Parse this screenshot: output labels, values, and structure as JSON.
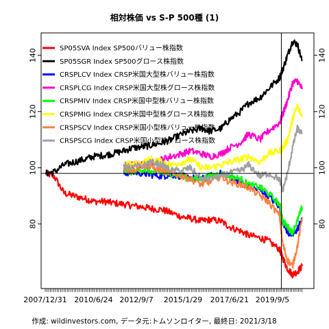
{
  "chart_data": {
    "type": "line",
    "title": "相対株価 vs S-P 500種 (1)",
    "caption": "作成: wildinvestors.com, データ元:トムソンロイター, 最終日: 2021/3/18",
    "xlabel": "",
    "ylabel": "",
    "x_range": [
      "2007/12/31",
      "2021/03/18"
    ],
    "x_tick_labels": [
      "2007/12/31",
      "2010/6/24",
      "2012/9/7",
      "2015/1/29",
      "2017/6/21",
      "2019/9/5"
    ],
    "x_tick_dates": [
      "2007-12-31",
      "2010-06-24",
      "2012-09-07",
      "2015-01-29",
      "2017-06-21",
      "2019-09-05"
    ],
    "y_ticks": [
      80,
      100,
      120,
      140
    ],
    "ylim": [
      57,
      148
    ],
    "grid": false,
    "legend_position": "top-left",
    "reference_hline": 98,
    "reference_vline_date": "2020-02-19",
    "series": [
      {
        "name": "SP05SVA Index SP500バリュー株指数",
        "color": "#FF0000",
        "points": [
          [
            "2008-01",
            98
          ],
          [
            "2008-06",
            97
          ],
          [
            "2008-12",
            91
          ],
          [
            "2009-06",
            90
          ],
          [
            "2010-01",
            89
          ],
          [
            "2010-06",
            88
          ],
          [
            "2011-01",
            88
          ],
          [
            "2011-06",
            87.5
          ],
          [
            "2012-01",
            87
          ],
          [
            "2012-06",
            86.5
          ],
          [
            "2013-01",
            86
          ],
          [
            "2013-06",
            85.5
          ],
          [
            "2014-01",
            85
          ],
          [
            "2014-06",
            84
          ],
          [
            "2015-01",
            82.5
          ],
          [
            "2015-06",
            82
          ],
          [
            "2016-01",
            81
          ],
          [
            "2016-06",
            81.5
          ],
          [
            "2017-01",
            81
          ],
          [
            "2017-06",
            79
          ],
          [
            "2018-01",
            77.5
          ],
          [
            "2018-06",
            76
          ],
          [
            "2019-01",
            75
          ],
          [
            "2019-06",
            74
          ],
          [
            "2020-01",
            71
          ],
          [
            "2020-03",
            68
          ],
          [
            "2020-06",
            64
          ],
          [
            "2020-09",
            62
          ],
          [
            "2020-12",
            63
          ],
          [
            "2021-03",
            65
          ]
        ]
      },
      {
        "name": "SP05SGR Index SP500グロース株指数",
        "color": "#000000",
        "points": [
          [
            "2008-01",
            98
          ],
          [
            "2008-06",
            98.5
          ],
          [
            "2008-12",
            101
          ],
          [
            "2009-06",
            102
          ],
          [
            "2010-01",
            103
          ],
          [
            "2010-06",
            104
          ],
          [
            "2011-01",
            104.5
          ],
          [
            "2011-06",
            105
          ],
          [
            "2012-01",
            106
          ],
          [
            "2012-06",
            107
          ],
          [
            "2013-01",
            107.5
          ],
          [
            "2013-06",
            108
          ],
          [
            "2014-01",
            109
          ],
          [
            "2014-06",
            110
          ],
          [
            "2015-01",
            112
          ],
          [
            "2015-06",
            113
          ],
          [
            "2016-01",
            114
          ],
          [
            "2016-06",
            113
          ],
          [
            "2017-01",
            114
          ],
          [
            "2017-06",
            117
          ],
          [
            "2018-01",
            120
          ],
          [
            "2018-06",
            123
          ],
          [
            "2019-01",
            125
          ],
          [
            "2019-06",
            128
          ],
          [
            "2020-01",
            132
          ],
          [
            "2020-03",
            135
          ],
          [
            "2020-06",
            140
          ],
          [
            "2020-09",
            145
          ],
          [
            "2020-12",
            144
          ],
          [
            "2021-03",
            138
          ]
        ]
      },
      {
        "name": "CRSPLCV Index CRSP米国大型株バリュー株指数",
        "color": "#0000FF",
        "points": [
          [
            "2012-01",
            98
          ],
          [
            "2012-06",
            98.5
          ],
          [
            "2013-01",
            98
          ],
          [
            "2013-06",
            97.5
          ],
          [
            "2014-01",
            97
          ],
          [
            "2014-06",
            97.5
          ],
          [
            "2015-01",
            97
          ],
          [
            "2015-06",
            96.5
          ],
          [
            "2016-01",
            96
          ],
          [
            "2016-06",
            97
          ],
          [
            "2017-01",
            98
          ],
          [
            "2017-06",
            97
          ],
          [
            "2018-01",
            95
          ],
          [
            "2018-06",
            93
          ],
          [
            "2019-01",
            92
          ],
          [
            "2019-06",
            90
          ],
          [
            "2020-01",
            86
          ],
          [
            "2020-03",
            81
          ],
          [
            "2020-06",
            77
          ],
          [
            "2020-09",
            76
          ],
          [
            "2020-12",
            78
          ],
          [
            "2021-03",
            82
          ]
        ]
      },
      {
        "name": "CRSPLCG Index CRSP米国大型株グロース株指数",
        "color": "#FF00CC",
        "points": [
          [
            "2012-01",
            100
          ],
          [
            "2012-06",
            101
          ],
          [
            "2013-01",
            101
          ],
          [
            "2013-06",
            102
          ],
          [
            "2014-01",
            103
          ],
          [
            "2014-06",
            104
          ],
          [
            "2015-01",
            105
          ],
          [
            "2015-06",
            106
          ],
          [
            "2016-01",
            105
          ],
          [
            "2016-06",
            104
          ],
          [
            "2017-01",
            105
          ],
          [
            "2017-06",
            107
          ],
          [
            "2018-01",
            109
          ],
          [
            "2018-06",
            112
          ],
          [
            "2019-01",
            110
          ],
          [
            "2019-06",
            113
          ],
          [
            "2020-01",
            116
          ],
          [
            "2020-03",
            119
          ],
          [
            "2020-06",
            124
          ],
          [
            "2020-09",
            130
          ],
          [
            "2020-12",
            131
          ],
          [
            "2021-03",
            128
          ]
        ]
      },
      {
        "name": "CRSPMIV Index CRSP米国中型株バリュー株指数",
        "color": "#00FF00",
        "points": [
          [
            "2012-01",
            99
          ],
          [
            "2012-06",
            98.5
          ],
          [
            "2013-01",
            99.5
          ],
          [
            "2013-06",
            98.5
          ],
          [
            "2014-01",
            98
          ],
          [
            "2014-06",
            98
          ],
          [
            "2015-01",
            97
          ],
          [
            "2015-06",
            96
          ],
          [
            "2016-01",
            96
          ],
          [
            "2016-06",
            97
          ],
          [
            "2017-01",
            98
          ],
          [
            "2017-06",
            97
          ],
          [
            "2018-01",
            96
          ],
          [
            "2018-06",
            94
          ],
          [
            "2019-01",
            93
          ],
          [
            "2019-06",
            91
          ],
          [
            "2020-01",
            87
          ],
          [
            "2020-03",
            81
          ],
          [
            "2020-06",
            79
          ],
          [
            "2020-09",
            77
          ],
          [
            "2020-12",
            81
          ],
          [
            "2021-03",
            86
          ]
        ]
      },
      {
        "name": "CRSPMIG Index CRSP米国中型株グロース株指数",
        "color": "#FFFF00",
        "points": [
          [
            "2012-01",
            102
          ],
          [
            "2012-06",
            101
          ],
          [
            "2013-01",
            102
          ],
          [
            "2013-06",
            103
          ],
          [
            "2014-01",
            102
          ],
          [
            "2014-06",
            101
          ],
          [
            "2015-01",
            102
          ],
          [
            "2015-06",
            103
          ],
          [
            "2016-01",
            100
          ],
          [
            "2016-06",
            100
          ],
          [
            "2017-01",
            101
          ],
          [
            "2017-06",
            102
          ],
          [
            "2018-01",
            103
          ],
          [
            "2018-06",
            104
          ],
          [
            "2019-01",
            102
          ],
          [
            "2019-06",
            105
          ],
          [
            "2020-01",
            106
          ],
          [
            "2020-03",
            107
          ],
          [
            "2020-06",
            110
          ],
          [
            "2020-09",
            117
          ],
          [
            "2020-12",
            122
          ],
          [
            "2021-03",
            118
          ]
        ]
      },
      {
        "name": "CRSPSCV Index CRSP米国小型株バリュー株指数",
        "color": "#FF8040",
        "points": [
          [
            "2012-01",
            100
          ],
          [
            "2012-06",
            99
          ],
          [
            "2013-01",
            101
          ],
          [
            "2013-06",
            100
          ],
          [
            "2014-01",
            99
          ],
          [
            "2014-06",
            98
          ],
          [
            "2015-01",
            97
          ],
          [
            "2015-06",
            96
          ],
          [
            "2016-01",
            94
          ],
          [
            "2016-06",
            95
          ],
          [
            "2017-01",
            97
          ],
          [
            "2017-06",
            95
          ],
          [
            "2018-01",
            94
          ],
          [
            "2018-06",
            93
          ],
          [
            "2019-01",
            90
          ],
          [
            "2019-06",
            88
          ],
          [
            "2020-01",
            83
          ],
          [
            "2020-03",
            73
          ],
          [
            "2020-06",
            67
          ],
          [
            "2020-09",
            65
          ],
          [
            "2020-12",
            72
          ],
          [
            "2021-03",
            82
          ]
        ]
      },
      {
        "name": "CRSPSCG Index CRSP米国小型株グロース株指数",
        "color": "#A0A0A0",
        "points": [
          [
            "2012-01",
            101
          ],
          [
            "2012-06",
            100
          ],
          [
            "2013-01",
            101
          ],
          [
            "2013-06",
            102
          ],
          [
            "2014-01",
            101
          ],
          [
            "2014-06",
            99
          ],
          [
            "2015-01",
            99
          ],
          [
            "2015-06",
            100
          ],
          [
            "2016-01",
            96
          ],
          [
            "2016-06",
            96
          ],
          [
            "2017-01",
            97
          ],
          [
            "2017-06",
            98
          ],
          [
            "2018-01",
            99
          ],
          [
            "2018-06",
            101
          ],
          [
            "2019-01",
            97
          ],
          [
            "2019-06",
            98
          ],
          [
            "2020-01",
            96
          ],
          [
            "2020-03",
            92
          ],
          [
            "2020-06",
            98
          ],
          [
            "2020-09",
            107
          ],
          [
            "2020-12",
            114
          ],
          [
            "2021-03",
            112
          ]
        ]
      }
    ]
  }
}
